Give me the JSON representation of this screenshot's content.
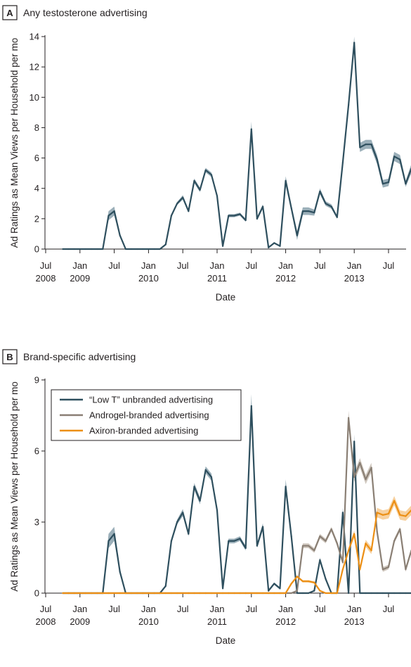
{
  "chart_data": [
    {
      "panel": "A",
      "title": "Any testosterone advertising",
      "type": "line",
      "xlabel": "Date",
      "ylabel": "Ad Ratings as Mean Views per Household per mo",
      "ylim": [
        0,
        14
      ],
      "yticks": [
        0,
        2,
        4,
        6,
        8,
        10,
        12,
        14
      ],
      "xticks": [
        {
          "month": "Jul",
          "year": "2008"
        },
        {
          "month": "Jan",
          "year": "2009"
        },
        {
          "month": "Jul",
          "year": ""
        },
        {
          "month": "Jan",
          "year": "2010"
        },
        {
          "month": "Jul",
          "year": ""
        },
        {
          "month": "Jan",
          "year": "2011"
        },
        {
          "month": "Jul",
          "year": ""
        },
        {
          "month": "Jan",
          "year": "2012"
        },
        {
          "month": "Jul",
          "year": ""
        },
        {
          "month": "Jan",
          "year": "2013"
        },
        {
          "month": "Jul",
          "year": ""
        }
      ],
      "x_start": "2008-10",
      "series": [
        {
          "color": "#2e4f5e",
          "band_color": "#8aa1ad",
          "values": [
            0,
            0,
            0,
            0,
            0,
            0,
            0,
            0,
            2.2,
            2.5,
            0.9,
            0,
            0,
            0,
            0,
            0,
            0,
            0,
            0.3,
            2.2,
            3.0,
            3.4,
            2.5,
            4.5,
            3.9,
            5.2,
            4.9,
            3.5,
            0.2,
            2.2,
            2.2,
            2.3,
            1.9,
            7.9,
            2.0,
            2.8,
            0.1,
            0.4,
            0.2,
            4.5,
            2.7,
            0.9,
            2.5,
            2.5,
            2.4,
            3.8,
            3.0,
            2.8,
            2.1,
            5.7,
            9.5,
            13.6,
            6.7,
            6.9,
            6.9,
            5.9,
            4.3,
            4.4,
            6.1,
            5.9,
            4.3,
            5.3
          ],
          "band": [
            0,
            0,
            0,
            0,
            0,
            0,
            0,
            0,
            0.3,
            0.3,
            0.1,
            0,
            0,
            0,
            0,
            0,
            0,
            0,
            0.05,
            0.1,
            0.1,
            0.15,
            0.1,
            0.15,
            0.15,
            0.15,
            0.15,
            0.15,
            0.05,
            0.1,
            0.1,
            0.1,
            0.1,
            0.5,
            0.1,
            0.15,
            0.05,
            0.05,
            0.05,
            0.3,
            0.2,
            0.3,
            0.25,
            0.25,
            0.2,
            0.2,
            0.15,
            0.15,
            0.1,
            0.2,
            0.3,
            0.5,
            0.3,
            0.3,
            0.3,
            0.3,
            0.25,
            0.25,
            0.3,
            0.3,
            0.2,
            0.3
          ]
        }
      ]
    },
    {
      "panel": "B",
      "title": "Brand-specific advertising",
      "type": "line",
      "xlabel": "Date",
      "ylabel": "Ad Ratings as Mean Views per Household per mo",
      "ylim": [
        0,
        9
      ],
      "yticks": [
        0,
        3,
        6,
        9
      ],
      "xticks": [
        {
          "month": "Jul",
          "year": "2008"
        },
        {
          "month": "Jan",
          "year": "2009"
        },
        {
          "month": "Jul",
          "year": ""
        },
        {
          "month": "Jan",
          "year": "2010"
        },
        {
          "month": "Jul",
          "year": ""
        },
        {
          "month": "Jan",
          "year": "2011"
        },
        {
          "month": "Jul",
          "year": ""
        },
        {
          "month": "Jan",
          "year": "2012"
        },
        {
          "month": "Jul",
          "year": ""
        },
        {
          "month": "Jan",
          "year": "2013"
        },
        {
          "month": "Jul",
          "year": ""
        }
      ],
      "x_start": "2008-10",
      "legend": "top-left",
      "series": [
        {
          "name": "“Low T” unbranded advertising",
          "color": "#2e4f5e",
          "band_color": "#8aa1ad",
          "values": [
            0,
            0,
            0,
            0,
            0,
            0,
            0,
            0,
            2.2,
            2.5,
            0.9,
            0,
            0,
            0,
            0,
            0,
            0,
            0,
            0.3,
            2.2,
            3.0,
            3.4,
            2.5,
            4.5,
            3.9,
            5.2,
            4.9,
            3.5,
            0.2,
            2.2,
            2.2,
            2.3,
            1.9,
            7.9,
            2.0,
            2.8,
            0.1,
            0.4,
            0.2,
            4.5,
            2.4,
            0,
            0,
            0,
            0.1,
            1.4,
            0.6,
            0,
            0,
            3.4,
            0,
            6.4,
            0,
            0,
            0,
            0,
            0,
            0,
            0,
            0,
            0,
            0
          ],
          "band": [
            0,
            0,
            0,
            0,
            0,
            0,
            0,
            0,
            0.3,
            0.3,
            0.1,
            0,
            0,
            0,
            0,
            0,
            0,
            0,
            0.05,
            0.1,
            0.1,
            0.15,
            0.1,
            0.15,
            0.15,
            0.15,
            0.15,
            0.15,
            0.05,
            0.1,
            0.1,
            0.1,
            0.1,
            0.5,
            0.1,
            0.15,
            0.05,
            0.05,
            0.05,
            0.3,
            0.2,
            0,
            0,
            0,
            0,
            0.1,
            0.05,
            0,
            0,
            0.2,
            0,
            0.3,
            0,
            0,
            0,
            0,
            0,
            0,
            0,
            0,
            0,
            0
          ]
        },
        {
          "name": "Androgel-branded advertising",
          "color": "#8a7f74",
          "band_color": "#c8beb4",
          "values": [
            0,
            0,
            0,
            0,
            0,
            0,
            0,
            0,
            0,
            0,
            0,
            0,
            0,
            0,
            0,
            0,
            0,
            0,
            0,
            0,
            0,
            0,
            0,
            0,
            0,
            0,
            0,
            0,
            0,
            0,
            0,
            0,
            0,
            0,
            0,
            0,
            0,
            0,
            0,
            0,
            0,
            0.1,
            2.0,
            2.0,
            1.8,
            2.4,
            2.2,
            2.7,
            2.1,
            1.3,
            7.4,
            4.9,
            5.5,
            4.8,
            5.3,
            2.6,
            1.0,
            1.1,
            2.2,
            2.7,
            1.0,
            1.8
          ],
          "band": [
            0,
            0,
            0,
            0,
            0,
            0,
            0,
            0,
            0,
            0,
            0,
            0,
            0,
            0,
            0,
            0,
            0,
            0,
            0,
            0,
            0,
            0,
            0,
            0,
            0,
            0,
            0,
            0,
            0,
            0,
            0,
            0,
            0,
            0,
            0,
            0,
            0,
            0,
            0,
            0,
            0,
            0.05,
            0.1,
            0.1,
            0.1,
            0.1,
            0.1,
            0.1,
            0.1,
            0.1,
            0.3,
            0.2,
            0.2,
            0.2,
            0.2,
            0.1,
            0.1,
            0.1,
            0.1,
            0.1,
            0.1,
            0.1
          ]
        },
        {
          "name": "Axiron-branded advertising",
          "color": "#ec8f14",
          "band_color": "#f6c98e",
          "values": [
            0,
            0,
            0,
            0,
            0,
            0,
            0,
            0,
            0,
            0,
            0,
            0,
            0,
            0,
            0,
            0,
            0,
            0,
            0,
            0,
            0,
            0,
            0,
            0,
            0,
            0,
            0,
            0,
            0,
            0,
            0,
            0,
            0,
            0,
            0,
            0,
            0,
            0,
            0,
            0,
            0.4,
            0.7,
            0.5,
            0.5,
            0.45,
            0.1,
            0,
            0,
            0,
            1.0,
            1.8,
            2.5,
            1.0,
            2.1,
            1.8,
            3.4,
            3.3,
            3.35,
            3.9,
            3.3,
            3.25,
            3.5
          ],
          "band": [
            0,
            0,
            0,
            0,
            0,
            0,
            0,
            0,
            0,
            0,
            0,
            0,
            0,
            0,
            0,
            0,
            0,
            0,
            0,
            0,
            0,
            0,
            0,
            0,
            0,
            0,
            0,
            0,
            0,
            0,
            0,
            0,
            0,
            0,
            0,
            0,
            0,
            0,
            0,
            0,
            0.05,
            0.05,
            0.05,
            0.05,
            0.05,
            0.02,
            0,
            0,
            0,
            0.1,
            0.1,
            0.15,
            0.1,
            0.15,
            0.15,
            0.2,
            0.2,
            0.2,
            0.2,
            0.2,
            0.2,
            0.2
          ]
        }
      ]
    }
  ]
}
